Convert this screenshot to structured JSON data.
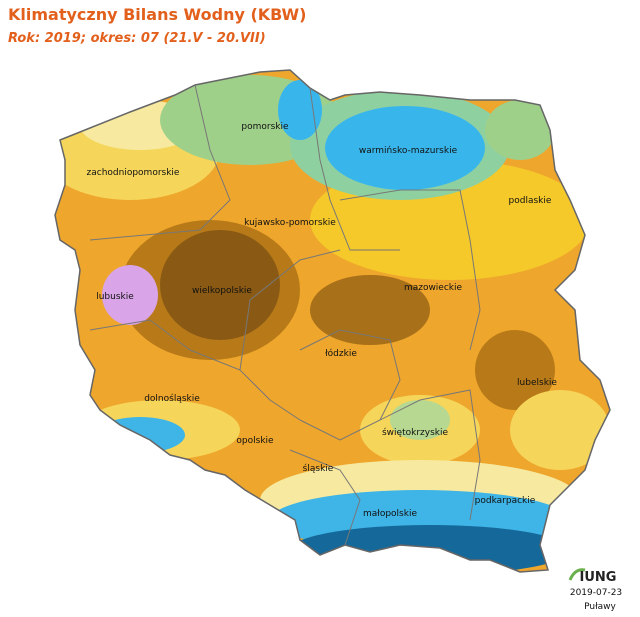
{
  "header": {
    "title": "Klimatyczny Bilans Wodny (KBW)",
    "subtitle": "Rok: 2019; okres: 07 (21.V - 20.VII)"
  },
  "regions": [
    "pomorskie",
    "warmińsko-mazurskie",
    "zachodniopomorskie",
    "podlaskie",
    "kujawsko-pomorskie",
    "mazowieckie",
    "lubuskie",
    "wielkopolskie",
    "łódzkie",
    "lubelskie",
    "dolnośląskie",
    "świętokrzyskie",
    "opolskie",
    "śląskie",
    "podkarpackie",
    "małopolskie"
  ],
  "footer": {
    "logo": "IUNG",
    "date": "2019-07-23",
    "place": "Puławy"
  }
}
